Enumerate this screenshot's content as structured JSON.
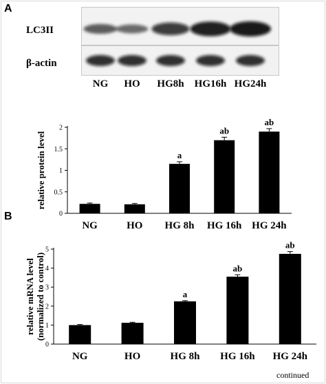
{
  "panel_a": {
    "letter": "A",
    "blot": {
      "rows": [
        "LC3II",
        "β-actin"
      ],
      "lanes": [
        "NG",
        "HO",
        "HG8h",
        "HG16h",
        "HG24h"
      ],
      "lc3ii_intensity": [
        0.45,
        0.35,
        0.75,
        0.95,
        1.0
      ],
      "actin_intensity": [
        0.85,
        0.85,
        0.85,
        0.85,
        0.85
      ]
    }
  },
  "panel_b": {
    "letter": "B"
  },
  "footer": "continued",
  "chart_data": [
    {
      "type": "bar",
      "title": "",
      "xlabel": "",
      "ylabel": "relative protein level",
      "categories": [
        "NG",
        "HO",
        "HG 8h",
        "HG 16h",
        "HG 24h"
      ],
      "values": [
        0.22,
        0.21,
        1.15,
        1.7,
        1.9
      ],
      "errors": [
        0.02,
        0.02,
        0.05,
        0.07,
        0.07
      ],
      "annotations": [
        "",
        "",
        "a",
        "ab",
        "ab"
      ],
      "ylim": [
        0,
        2
      ],
      "yticks": [
        0,
        0.5,
        1,
        1.5,
        2
      ],
      "ytick_labels": [
        "0",
        "0.5",
        "1",
        "1.5",
        "2"
      ],
      "grid": false,
      "bar_color": "#000000"
    },
    {
      "type": "bar",
      "title": "",
      "xlabel": "",
      "ylabel": "relative mRNA level",
      "ylabel2": "(normalized to control)",
      "categories": [
        "NG",
        "HO",
        "HG 8h",
        "HG 16h",
        "HG 24h"
      ],
      "values": [
        1.0,
        1.12,
        2.25,
        3.55,
        4.75
      ],
      "errors": [
        0.03,
        0.03,
        0.04,
        0.1,
        0.12
      ],
      "annotations": [
        "",
        "",
        "a",
        "ab",
        "ab"
      ],
      "ylim": [
        0,
        5
      ],
      "yticks": [
        0,
        1,
        2,
        3,
        4,
        5
      ],
      "ytick_labels": [
        "0",
        "1",
        "2",
        "3",
        "4",
        "5"
      ],
      "grid": false,
      "bar_color": "#000000"
    }
  ]
}
